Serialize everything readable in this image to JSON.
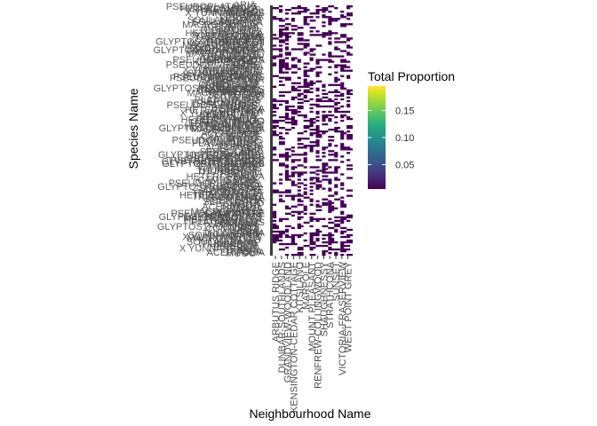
{
  "chart_data": {
    "type": "heatmap",
    "title": "",
    "xlabel": "Neighbourhood Name",
    "ylabel": "Species Name",
    "x_categories": [
      "ARBUTUS RIDGE",
      "DUNBAR-SOUTHLANDS",
      "GRANDVIEW-WOODLAND",
      "KENSINGTON-CEDAR COTTAGE",
      "KITSILANO",
      "MARPOLE",
      "MOUNT PLEASANT",
      "RENFREW-COLLINGWOOD",
      "SHAUGHNESSY",
      "STRATHCONA",
      "SUNSET",
      "VICTORIA-FRASERVIEW",
      "WEST POINT GREY"
    ],
    "y_categories_visible": [
      "X YUNNANENSIS",
      "TRIACANTHOS",
      "THUNBERGII",
      "SOULANGIANA",
      "SERRULATA",
      "PSEUDOPLATANUS",
      "PLATANOIDES",
      "PERSICA",
      "NIGRA",
      "MUGO",
      "MACROPHYLLA",
      "HETEROPHYLLA",
      "GLYPTOSTROBOIDES",
      "CONTORTA",
      "CAMPESTRE",
      "BETULUS",
      "ARIA",
      "ACERIFOLIA"
    ],
    "color_scale": {
      "name": "Total Proportion",
      "palette": "viridis",
      "min": 0.005,
      "max": 0.195,
      "ticks": [
        0.05,
        0.1,
        0.15
      ],
      "tick_labels": [
        "0.05",
        "0.10",
        "0.15"
      ],
      "low_color": "#440154",
      "high_color": "#fde725"
    },
    "legend_position": "right",
    "grid": false
  }
}
